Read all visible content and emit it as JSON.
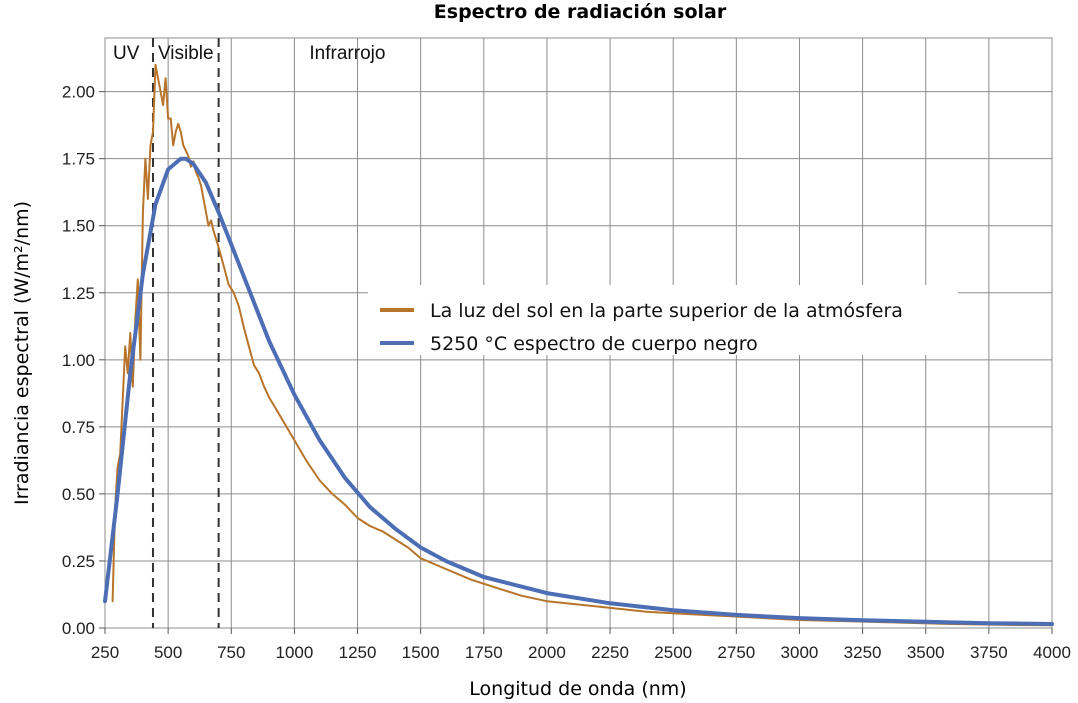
{
  "chart_data": {
    "type": "line",
    "title": "Espectro de radiación solar",
    "xlabel": "Longitud de onda (nm)",
    "ylabel": "Irradiancia espectral (W/m²/nm)",
    "xlim": [
      250,
      4000
    ],
    "ylim": [
      0,
      2.2
    ],
    "xticks": [
      "250",
      "500",
      "750",
      "1000",
      "1250",
      "1500",
      "1750",
      "2000",
      "2250",
      "2500",
      "2750",
      "3000",
      "3250",
      "3500",
      "3750",
      "4000"
    ],
    "yticks": [
      "0.00",
      "0.25",
      "0.50",
      "0.75",
      "1.00",
      "1.25",
      "1.50",
      "1.75",
      "2.00"
    ],
    "grid": true,
    "legend_position": "center-right",
    "regions": [
      {
        "label": "UV",
        "from": 250,
        "to": 440
      },
      {
        "label": "Visible",
        "from": 440,
        "to": 700
      },
      {
        "label": "Infrarrojo",
        "from": 700,
        "to": 4000
      }
    ],
    "series": [
      {
        "name": "La luz del sol en la parte superior de la atmósfera",
        "color": "#b8742a",
        "x": [
          280,
          290,
          300,
          310,
          320,
          330,
          340,
          350,
          360,
          370,
          380,
          390,
          400,
          410,
          420,
          430,
          440,
          450,
          460,
          470,
          480,
          490,
          500,
          510,
          520,
          530,
          540,
          550,
          560,
          570,
          580,
          590,
          600,
          610,
          620,
          630,
          640,
          650,
          660,
          670,
          680,
          690,
          700,
          720,
          740,
          760,
          780,
          800,
          820,
          840,
          860,
          880,
          900,
          950,
          1000,
          1050,
          1100,
          1150,
          1200,
          1250,
          1300,
          1350,
          1400,
          1450,
          1500,
          1600,
          1700,
          1800,
          1900,
          2000,
          2200,
          2400,
          2600,
          2800,
          3000,
          3200,
          3400,
          3600,
          3800,
          4000
        ],
        "y": [
          0.1,
          0.45,
          0.6,
          0.65,
          0.85,
          1.05,
          0.95,
          1.1,
          0.9,
          1.15,
          1.3,
          1.0,
          1.55,
          1.75,
          1.6,
          1.8,
          1.85,
          2.1,
          2.05,
          2.0,
          1.95,
          2.05,
          1.9,
          1.9,
          1.8,
          1.85,
          1.88,
          1.85,
          1.8,
          1.78,
          1.76,
          1.72,
          1.74,
          1.7,
          1.68,
          1.65,
          1.6,
          1.55,
          1.5,
          1.52,
          1.48,
          1.45,
          1.42,
          1.35,
          1.28,
          1.25,
          1.2,
          1.12,
          1.05,
          0.98,
          0.95,
          0.9,
          0.86,
          0.78,
          0.7,
          0.62,
          0.55,
          0.5,
          0.46,
          0.41,
          0.38,
          0.36,
          0.33,
          0.3,
          0.26,
          0.22,
          0.18,
          0.15,
          0.12,
          0.1,
          0.08,
          0.06,
          0.05,
          0.04,
          0.03,
          0.025,
          0.02,
          0.015,
          0.012,
          0.01
        ]
      },
      {
        "name": "5250 °C espectro de cuerpo negro",
        "color": "#4d6eb4",
        "x": [
          250,
          300,
          350,
          400,
          450,
          500,
          550,
          570,
          600,
          650,
          700,
          750,
          800,
          900,
          1000,
          1100,
          1200,
          1300,
          1400,
          1500,
          1600,
          1750,
          2000,
          2250,
          2500,
          2750,
          3000,
          3250,
          3500,
          3750,
          4000
        ],
        "y": [
          0.1,
          0.5,
          0.95,
          1.32,
          1.58,
          1.71,
          1.75,
          1.75,
          1.73,
          1.66,
          1.55,
          1.43,
          1.31,
          1.07,
          0.87,
          0.7,
          0.56,
          0.45,
          0.37,
          0.3,
          0.25,
          0.19,
          0.13,
          0.092,
          0.066,
          0.049,
          0.037,
          0.029,
          0.023,
          0.018,
          0.015
        ]
      }
    ]
  }
}
